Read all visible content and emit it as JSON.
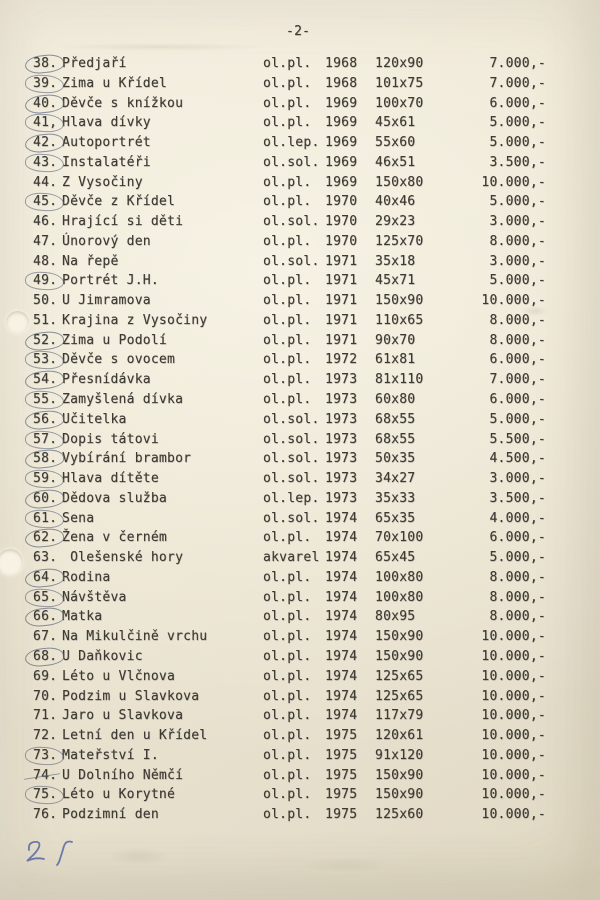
{
  "page": {
    "number_label": "-2-",
    "handwritten_note": "25"
  },
  "colors": {
    "paper": "#ebe4d1",
    "ink": "#3d3a34",
    "pencil_mark": "#5d687d",
    "pen_blue": "#5468a6"
  },
  "rows": [
    {
      "num": "38.",
      "title": "Předjaří",
      "tech": "ol.pl.",
      "year": "1968",
      "dim": "120x90",
      "price": "7.000,-",
      "mark": "circle"
    },
    {
      "num": "39.",
      "title": "Zima u Křídel",
      "tech": "ol.pl.",
      "year": "1968",
      "dim": "101x75",
      "price": "7.000,-",
      "mark": "circle"
    },
    {
      "num": "40.",
      "title": "Děvče s knížkou",
      "tech": "ol.pl.",
      "year": "1969",
      "dim": "100x70",
      "price": "6.000,-",
      "mark": "circle"
    },
    {
      "num": "41,",
      "title": "Hlava dívky",
      "tech": "ol.pl.",
      "year": "1969",
      "dim": "45x61",
      "price": "5.000,-",
      "mark": "circle"
    },
    {
      "num": "42.",
      "title": "Autoportrét",
      "tech": "ol.lep.",
      "year": "1969",
      "dim": "55x60",
      "price": "5.000,-",
      "mark": "circle"
    },
    {
      "num": "43.",
      "title": "Instalatéři",
      "tech": "ol.sol.",
      "year": "1969",
      "dim": "46x51",
      "price": "3.500,-",
      "mark": "circle"
    },
    {
      "num": "44.",
      "title": "Z Vysočiny",
      "tech": "ol.pl.",
      "year": "1969",
      "dim": "150x80",
      "price": "10.000,-",
      "mark": "none"
    },
    {
      "num": "45.",
      "title": "Děvče z Křídel",
      "tech": "ol.pl.",
      "year": "1970",
      "dim": "40x46",
      "price": "5.000,-",
      "mark": "circle"
    },
    {
      "num": "46.",
      "title": "Hrající si děti",
      "tech": "ol.sol.",
      "year": "1970",
      "dim": "29x23",
      "price": "3.000,-",
      "mark": "none"
    },
    {
      "num": "47.",
      "title": "Únorový den",
      "tech": "ol.pl.",
      "year": "1970",
      "dim": "125x70",
      "price": "8.000,-",
      "mark": "none"
    },
    {
      "num": "48.",
      "title": "Na řepě",
      "tech": "ol.sol.",
      "year": "1971",
      "dim": "35x18",
      "price": "3.000,-",
      "mark": "none"
    },
    {
      "num": "49.",
      "title": "Portrét J.H.",
      "tech": "ol.pl.",
      "year": "1971",
      "dim": "45x71",
      "price": "5.000,-",
      "mark": "circle"
    },
    {
      "num": "50.",
      "title": "U Jimramova",
      "tech": "ol.pl.",
      "year": "1971",
      "dim": "150x90",
      "price": "10.000,-",
      "mark": "none"
    },
    {
      "num": "51.",
      "title": "Krajina z Vysočiny",
      "tech": "ol.pl.",
      "year": "1971",
      "dim": "110x65",
      "price": "8.000,-",
      "mark": "none"
    },
    {
      "num": "52.",
      "title": "Zima u Podolí",
      "tech": "ol.pl.",
      "year": "1971",
      "dim": "90x70",
      "price": "8.000,-",
      "mark": "circle"
    },
    {
      "num": "53.",
      "title": "Děvče s ovocem",
      "tech": "ol.pl.",
      "year": "1972",
      "dim": "61x81",
      "price": "6.000,-",
      "mark": "circle"
    },
    {
      "num": "54.",
      "title": "Přesnídávka",
      "tech": "ol.pl.",
      "year": "1973",
      "dim": "81x110",
      "price": "7.000,-",
      "mark": "circle"
    },
    {
      "num": "55.",
      "title": "Zamyšlená dívka",
      "tech": "ol.pl.",
      "year": "1973",
      "dim": "60x80",
      "price": "6.000,-",
      "mark": "circle"
    },
    {
      "num": "56.",
      "title": "Učitelka",
      "tech": "ol.sol.",
      "year": "1973",
      "dim": "68x55",
      "price": "5.000,-",
      "mark": "circle"
    },
    {
      "num": "57.",
      "title": "Dopis tátovi",
      "tech": "ol.sol.",
      "year": "1973",
      "dim": "68x55",
      "price": "5.500,-",
      "mark": "circle"
    },
    {
      "num": "58.",
      "title": "Vybírání brambor",
      "tech": "ol.sol.",
      "year": "1973",
      "dim": "50x35",
      "price": "4.500,-",
      "mark": "circle"
    },
    {
      "num": "59.",
      "title": "Hlava dítěte",
      "tech": "ol.sol.",
      "year": "1973",
      "dim": "34x27",
      "price": "3.000,-",
      "mark": "circle"
    },
    {
      "num": "60.",
      "title": "Dědova služba",
      "tech": "ol.lep.",
      "year": "1973",
      "dim": "35x33",
      "price": "3.500,-",
      "mark": "circle"
    },
    {
      "num": "61.",
      "title": "Sena",
      "tech": "ol.sol.",
      "year": "1974",
      "dim": "65x35",
      "price": "4.000,-",
      "mark": "circle"
    },
    {
      "num": "62.",
      "title": "Žena v černém",
      "tech": "ol.pl.",
      "year": "1974",
      "dim": "70x100",
      "price": "6.000,-",
      "mark": "circle"
    },
    {
      "num": "63.",
      "title": " Olešenské hory",
      "tech": "akvarel",
      "year": "1974",
      "dim": "65x45",
      "price": "5.000,-",
      "mark": "none"
    },
    {
      "num": "64.",
      "title": "Rodina",
      "tech": "ol.pl.",
      "year": "1974",
      "dim": "100x80",
      "price": "8.000,-",
      "mark": "circle"
    },
    {
      "num": "65.",
      "title": "Návštěva",
      "tech": "ol.pl.",
      "year": "1974",
      "dim": "100x80",
      "price": "8.000,-",
      "mark": "circle"
    },
    {
      "num": "66.",
      "title": "Matka",
      "tech": "ol.pl.",
      "year": "1974",
      "dim": "80x95",
      "price": "8.000,-",
      "mark": "circle"
    },
    {
      "num": "67.",
      "title": "Na Mikulčině vrchu",
      "tech": "ol.pl.",
      "year": "1974",
      "dim": "150x90",
      "price": "10.000,-",
      "mark": "none"
    },
    {
      "num": "68.",
      "title": "U Daňkovic",
      "tech": "ol.pl.",
      "year": "1974",
      "dim": "150x90",
      "price": "10.000,-",
      "mark": "circle"
    },
    {
      "num": "69.",
      "title": "Léto u Vlčnova",
      "tech": "ol.pl.",
      "year": "1974",
      "dim": "125x65",
      "price": "10.000,-",
      "mark": "none"
    },
    {
      "num": "70.",
      "title": "Podzim u Slavkova",
      "tech": "ol.pl.",
      "year": "1974",
      "dim": "125x65",
      "price": "10.000,-",
      "mark": "none"
    },
    {
      "num": "71.",
      "title": "Jaro u Slavkova",
      "tech": "ol.pl.",
      "year": "1974",
      "dim": "117x79",
      "price": "10.000,-",
      "mark": "none"
    },
    {
      "num": "72.",
      "title": "Letní den u Křídel",
      "tech": "ol.pl.",
      "year": "1975",
      "dim": "120x61",
      "price": "10.000,-",
      "mark": "none"
    },
    {
      "num": "73.",
      "title": "Mateřství I.",
      "tech": "ol.pl.",
      "year": "1975",
      "dim": "91x120",
      "price": "10.000,-",
      "mark": "circle"
    },
    {
      "num": "74.",
      "title": "U Dolního Němčí",
      "tech": "ol.pl.",
      "year": "1975",
      "dim": "150x90",
      "price": "10.000,-",
      "mark": "strike"
    },
    {
      "num": "75.",
      "title": "Léto u Korytné",
      "tech": "ol.pl.",
      "year": "1975",
      "dim": "150x90",
      "price": "10.000,-",
      "mark": "circle"
    },
    {
      "num": "76.",
      "title": "Podzimní den",
      "tech": "ol.pl.",
      "year": "1975",
      "dim": "125x60",
      "price": "10.000,-",
      "mark": "none"
    }
  ]
}
